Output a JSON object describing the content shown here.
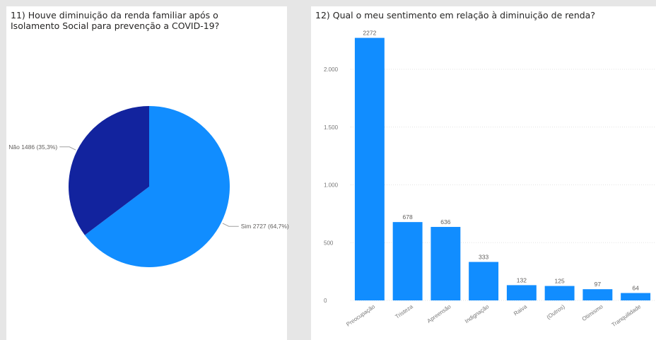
{
  "colors": {
    "pie_sim": "#118dff",
    "pie_nao": "#12239e",
    "bar": "#118dff",
    "grid": "#e3e3e3",
    "axis_text": "#777777",
    "label_text": "#605e5c",
    "leader": "#a0a0a0"
  },
  "chart_data": [
    {
      "type": "pie",
      "title": "11) Houve diminuição da renda familiar após o Isolamento Social para prevenção a COVID-19?",
      "slices": [
        {
          "label": "Sim",
          "value": 2727,
          "percent": "64,7%",
          "display": "Sim 2727 (64,7%)"
        },
        {
          "label": "Não",
          "value": 1486,
          "percent": "35,3%",
          "display": "Não 1486 (35,3%)"
        }
      ]
    },
    {
      "type": "bar",
      "title": "12) Qual o meu sentimento em relação à diminuição de renda?",
      "categories": [
        "Preocupação",
        "Tristeza",
        "Apreensão",
        "Indignação",
        "Raiva",
        "(Outros)",
        "Otimismo",
        "Tranquilidade"
      ],
      "values": [
        2272,
        678,
        636,
        333,
        132,
        125,
        97,
        64
      ],
      "value_labels": [
        "2272",
        "678",
        "636",
        "333",
        "132",
        "125",
        "97",
        "64"
      ],
      "yticks": [
        0,
        500,
        1000,
        1500,
        2000
      ],
      "ytick_labels": [
        "0",
        "500",
        "1.000",
        "1.500",
        "2.000"
      ],
      "ylim": [
        0,
        2300
      ],
      "grid": true
    }
  ]
}
